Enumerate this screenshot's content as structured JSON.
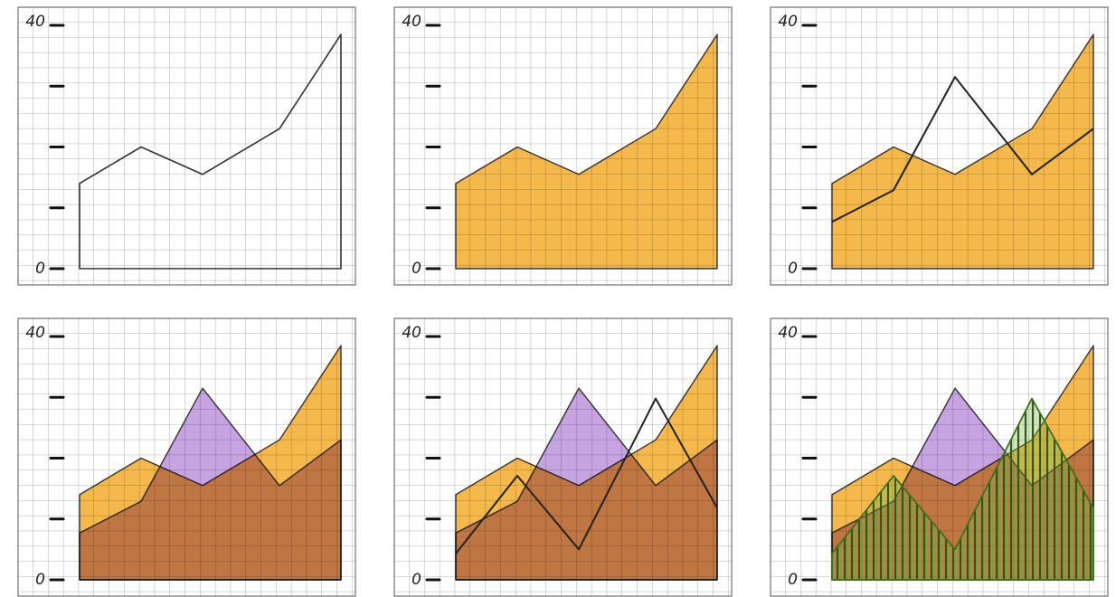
{
  "chart_data": [
    {
      "type": "area",
      "x": [
        0,
        4,
        8,
        13,
        17
      ],
      "xlim": [
        0,
        17
      ],
      "ylim": [
        0,
        40
      ],
      "yticks": [
        0,
        {
          "value": 10,
          "label": null
        },
        {
          "value": 20,
          "label": null
        },
        {
          "value": 30,
          "label": null
        },
        40
      ],
      "series": [
        {
          "style": "outline",
          "color": "#f3b23c",
          "values": [
            14,
            20,
            15.5,
            23,
            38.5
          ]
        }
      ]
    },
    {
      "type": "area",
      "x": [
        0,
        4,
        8,
        13,
        17
      ],
      "xlim": [
        0,
        17
      ],
      "ylim": [
        0,
        40
      ],
      "yticks": [
        0,
        {
          "value": 10,
          "label": null
        },
        {
          "value": 20,
          "label": null
        },
        {
          "value": 30,
          "label": null
        },
        40
      ],
      "series": [
        {
          "style": "area",
          "color": "#f3b23c",
          "values": [
            14,
            20,
            15.5,
            23,
            38.5
          ]
        }
      ]
    },
    {
      "type": "area",
      "x": [
        0,
        4,
        8,
        13,
        17
      ],
      "xlim": [
        0,
        17
      ],
      "ylim": [
        0,
        40
      ],
      "yticks": [
        0,
        {
          "value": 10,
          "label": null
        },
        {
          "value": 20,
          "label": null
        },
        {
          "value": 30,
          "label": null
        },
        40
      ],
      "series": [
        {
          "style": "area",
          "color": "#f3b23c",
          "values": [
            14,
            20,
            15.5,
            23,
            38.5
          ]
        },
        {
          "style": "line",
          "color": "#222222",
          "values": [
            7.7,
            12.9,
            31.5,
            15.5,
            23
          ]
        }
      ]
    },
    {
      "type": "area",
      "x": [
        0,
        4,
        8,
        13,
        17
      ],
      "xlim": [
        0,
        17
      ],
      "ylim": [
        0,
        40
      ],
      "yticks": [
        0,
        {
          "value": 10,
          "label": null
        },
        {
          "value": 20,
          "label": null
        },
        {
          "value": 30,
          "label": null
        },
        40
      ],
      "series": [
        {
          "style": "area",
          "color": "#f3b23c",
          "values": [
            14,
            20,
            15.5,
            23,
            38.5
          ]
        },
        {
          "style": "area",
          "color": "#c39be0",
          "values": [
            7.7,
            12.9,
            31.5,
            15.5,
            23
          ]
        }
      ]
    },
    {
      "type": "area",
      "x": [
        0,
        4,
        8,
        13,
        17
      ],
      "xlim": [
        0,
        17
      ],
      "ylim": [
        0,
        40
      ],
      "yticks": [
        0,
        {
          "value": 10,
          "label": null
        },
        {
          "value": 20,
          "label": null
        },
        {
          "value": 30,
          "label": null
        },
        40
      ],
      "series": [
        {
          "style": "area",
          "color": "#f3b23c",
          "values": [
            14,
            20,
            15.5,
            23,
            38.5
          ]
        },
        {
          "style": "area",
          "color": "#c39be0",
          "values": [
            7.7,
            12.9,
            31.5,
            15.5,
            23
          ]
        },
        {
          "style": "line",
          "color": "#222222",
          "values": [
            4.3,
            17.1,
            5,
            29.8,
            11.8
          ]
        }
      ]
    },
    {
      "type": "area",
      "x": [
        0,
        4,
        8,
        13,
        17
      ],
      "xlim": [
        0,
        17
      ],
      "ylim": [
        0,
        40
      ],
      "yticks": [
        0,
        {
          "value": 10,
          "label": null
        },
        {
          "value": 20,
          "label": null
        },
        {
          "value": 30,
          "label": null
        },
        40
      ],
      "series": [
        {
          "style": "area",
          "color": "#f3b23c",
          "values": [
            14,
            20,
            15.5,
            23,
            38.5
          ]
        },
        {
          "style": "area",
          "color": "#c39be0",
          "values": [
            7.7,
            12.9,
            31.5,
            15.5,
            23
          ]
        },
        {
          "style": "hatch",
          "color": "#3f6e1c",
          "values": [
            4.3,
            17.1,
            5,
            29.8,
            11.8
          ]
        }
      ]
    }
  ]
}
